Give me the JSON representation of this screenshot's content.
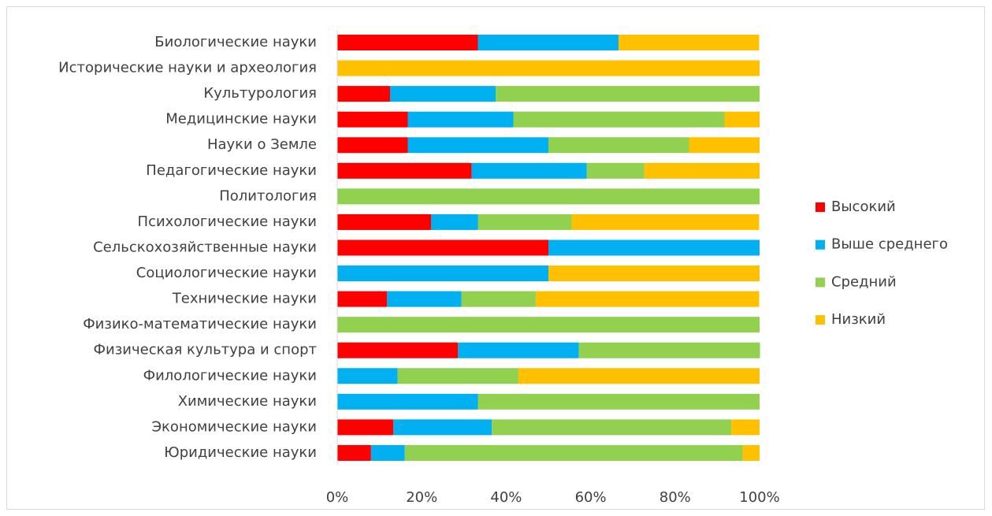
{
  "chart_data": {
    "type": "stacked-bar-horizontal",
    "categories": [
      "Биологические науки",
      "Исторические науки и археология",
      "Культурология",
      "Медицинские науки",
      "Науки о Земле",
      "Педагогические науки",
      "Политология",
      "Психологические науки",
      "Сельскохозяйственные науки",
      "Социологические науки",
      "Технические науки",
      "Физико-математические науки",
      "Физическая культура и спорт",
      "Филологические науки",
      "Химические науки",
      "Экономические науки",
      "Юридические науки"
    ],
    "series": [
      {
        "name": "Высокий",
        "color": "#ff0000",
        "values": [
          33.3,
          0,
          12.5,
          16.7,
          16.7,
          31.8,
          0,
          22.2,
          50,
          0,
          11.8,
          0,
          28.6,
          0,
          0,
          13.3,
          8
        ]
      },
      {
        "name": "Выше среднего",
        "color": "#00b0f0",
        "values": [
          33.3,
          0,
          25,
          25,
          33.3,
          27.3,
          0,
          11.1,
          50,
          50,
          17.6,
          0,
          28.6,
          14.3,
          33.3,
          23.3,
          8
        ]
      },
      {
        "name": "Средний",
        "color": "#92d050",
        "values": [
          0,
          0,
          62.5,
          50,
          33.3,
          13.6,
          100,
          22.2,
          0,
          0,
          17.6,
          100,
          42.9,
          28.6,
          66.7,
          56.7,
          80
        ]
      },
      {
        "name": "Низкий",
        "color": "#ffc000",
        "values": [
          33.3,
          100,
          0,
          8.3,
          16.7,
          27.3,
          0,
          44.4,
          0,
          50,
          52.9,
          0,
          0,
          57.1,
          0,
          6.7,
          4
        ]
      }
    ],
    "xlim": [
      0,
      100
    ],
    "xticks": [
      {
        "value": 0,
        "label": "0%"
      },
      {
        "value": 20,
        "label": "20%"
      },
      {
        "value": 40,
        "label": "40%"
      },
      {
        "value": 60,
        "label": "60%"
      },
      {
        "value": 80,
        "label": "80%"
      },
      {
        "value": 100,
        "label": "100%"
      }
    ],
    "grid": false,
    "legend": "right"
  }
}
